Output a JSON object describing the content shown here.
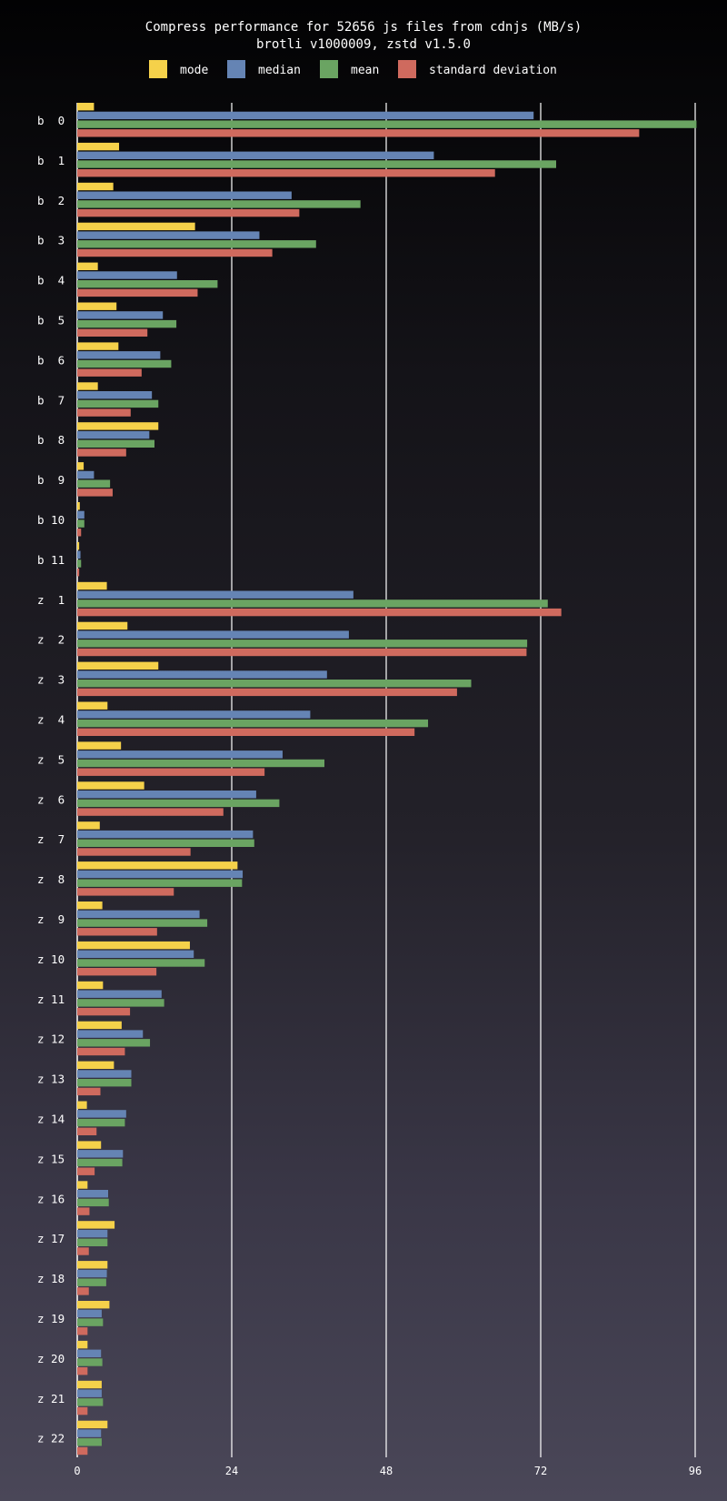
{
  "chart_data": {
    "type": "bar",
    "orientation": "horizontal",
    "title": "Compress performance for 52656 js files from cdnjs (MB/s)",
    "subtitle": "brotli v1000009, zstd v1.5.0",
    "xlim": [
      0,
      96
    ],
    "xticks": [
      "0",
      "24",
      "48",
      "72",
      "96"
    ],
    "grid": true,
    "legend_position": "top",
    "categories": [
      "b  0",
      "b  1",
      "b  2",
      "b  3",
      "b  4",
      "b  5",
      "b  6",
      "b  7",
      "b  8",
      "b  9",
      "b 10",
      "b 11",
      "z  1",
      "z  2",
      "z  3",
      "z  4",
      "z  5",
      "z  6",
      "z  7",
      "z  8",
      "z  9",
      "z 10",
      "z 11",
      "z 12",
      "z 13",
      "z 14",
      "z 15",
      "z 16",
      "z 17",
      "z 18",
      "z 19",
      "z 20",
      "z 21",
      "z 22"
    ],
    "series": [
      {
        "name": "mode",
        "color": "#f5d14a",
        "values": [
          2.6,
          6.5,
          5.6,
          18.3,
          3.2,
          6.1,
          6.4,
          3.2,
          12.6,
          1.0,
          0.4,
          0.3,
          4.6,
          7.8,
          12.6,
          4.7,
          6.8,
          10.4,
          3.5,
          24.9,
          3.9,
          17.5,
          4.0,
          6.9,
          5.7,
          1.5,
          3.7,
          1.6,
          5.8,
          4.7,
          5.0,
          1.6,
          3.8,
          4.7
        ]
      },
      {
        "name": "median",
        "color": "#6584b4",
        "values": [
          70.9,
          55.4,
          33.3,
          28.3,
          15.5,
          13.3,
          12.9,
          11.6,
          11.2,
          2.6,
          1.1,
          0.5,
          42.9,
          42.2,
          38.8,
          36.2,
          31.9,
          27.8,
          27.3,
          25.7,
          19.0,
          18.1,
          13.1,
          10.2,
          8.4,
          7.6,
          7.1,
          4.8,
          4.7,
          4.6,
          3.8,
          3.7,
          3.8,
          3.7
        ]
      },
      {
        "name": "mean",
        "color": "#6aa462",
        "values": [
          96.2,
          74.4,
          44.0,
          37.1,
          21.8,
          15.4,
          14.6,
          12.6,
          12.0,
          5.1,
          1.1,
          0.6,
          73.1,
          69.9,
          61.2,
          54.5,
          38.4,
          31.4,
          27.5,
          25.6,
          20.2,
          19.8,
          13.5,
          11.3,
          8.4,
          7.4,
          7.0,
          4.9,
          4.7,
          4.5,
          4.0,
          3.9,
          4.0,
          3.8
        ]
      },
      {
        "name": "standard deviation",
        "color": "#cf6a5e",
        "values": [
          87.3,
          64.9,
          34.5,
          30.3,
          18.7,
          10.9,
          10.0,
          8.3,
          7.6,
          5.5,
          0.6,
          0.3,
          75.2,
          69.8,
          59.0,
          52.4,
          29.1,
          22.7,
          17.6,
          15.0,
          12.4,
          12.3,
          8.2,
          7.4,
          3.6,
          3.0,
          2.7,
          1.9,
          1.8,
          1.8,
          1.6,
          1.6,
          1.6,
          1.6
        ]
      }
    ]
  }
}
